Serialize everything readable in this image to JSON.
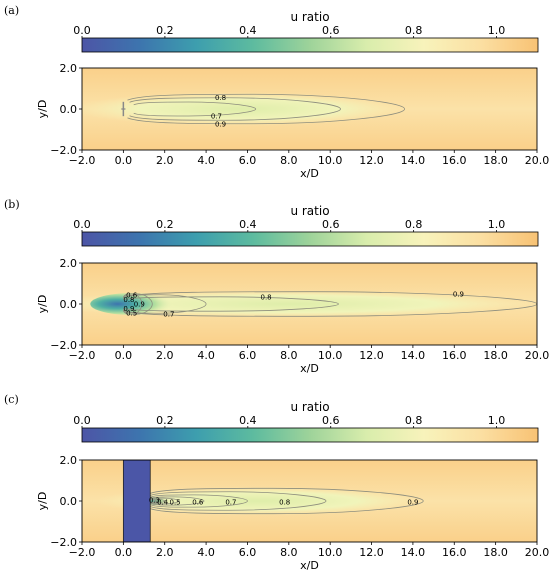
{
  "colors": {
    "colormap": [
      "#4d55a6",
      "#3d74ae",
      "#3d9eae",
      "#5dbb9f",
      "#9ed39a",
      "#d9edac",
      "#f8f3bb",
      "#fbdfa2",
      "#f8c274"
    ],
    "background": "#fad08a",
    "wake_core": "#e4f1b2",
    "contour_line": "#8e8e7e",
    "turbine_marker": "#888888",
    "blocked_region": "#4b56a7"
  },
  "chart_data": [
    {
      "panel": "(a)",
      "type": "heatmap",
      "colorbar": {
        "label": "u ratio",
        "ticks": [
          "0.0",
          "0.2",
          "0.4",
          "0.6",
          "0.8",
          "1.0"
        ],
        "range": [
          0.0,
          1.1
        ]
      },
      "xlabel": "x/D",
      "ylabel": "y/D",
      "xlim": [
        -2.0,
        20.0
      ],
      "ylim": [
        -2.0,
        2.0
      ],
      "xticks": [
        "−2.0",
        "0.0",
        "2.0",
        "4.0",
        "6.0",
        "8.0",
        "10.0",
        "12.0",
        "14.0",
        "16.0",
        "18.0",
        "20.0"
      ],
      "yticks": [
        "2.0",
        "0.0",
        "−2.0"
      ],
      "turbine_marker": true,
      "blocked_region": null,
      "contours": [
        {
          "level": 0.7,
          "x_start": 0.5,
          "x_end": 6.4,
          "half_width": 0.34,
          "label": "0.7",
          "label_x": 4.5,
          "label_y": -0.35
        },
        {
          "level": 0.8,
          "x_start": 0.3,
          "x_end": 10.5,
          "half_width": 0.55,
          "label": "0.8",
          "label_x": 4.7,
          "label_y": 0.55
        },
        {
          "level": 0.9,
          "x_start": 0.2,
          "x_end": 13.6,
          "half_width": 0.72,
          "label": "0.9",
          "label_x": 4.7,
          "label_y": -0.72
        }
      ]
    },
    {
      "panel": "(b)",
      "type": "heatmap",
      "colorbar": {
        "label": "u ratio",
        "ticks": [
          "0.0",
          "0.2",
          "0.4",
          "0.6",
          "0.8",
          "1.0"
        ],
        "range": [
          0.0,
          1.1
        ]
      },
      "xlabel": "x/D",
      "ylabel": "y/D",
      "xlim": [
        -2.0,
        20.0
      ],
      "ylim": [
        -2.0,
        2.0
      ],
      "xticks": [
        "−2.0",
        "0.0",
        "2.0",
        "4.0",
        "6.0",
        "8.0",
        "10.0",
        "12.0",
        "14.0",
        "16.0",
        "18.0",
        "20.0"
      ],
      "yticks": [
        "2.0",
        "0.0",
        "−2.0"
      ],
      "turbine_marker": false,
      "blocked_region": null,
      "contours": [
        {
          "level": 0.5,
          "x_start": 0.0,
          "x_end": 0.9,
          "half_width": 0.5,
          "label": "0.5",
          "label_x": 0.4,
          "label_y": -0.45
        },
        {
          "level": 0.6,
          "x_start": 0.0,
          "x_end": 1.4,
          "half_width": 0.5,
          "label": "0.6",
          "label_x": 0.4,
          "label_y": 0.45
        },
        {
          "level": 0.7,
          "x_start": 0.0,
          "x_end": 4.0,
          "half_width": 0.45,
          "label": "0.7",
          "label_x": 2.2,
          "label_y": -0.48
        },
        {
          "level": 0.8,
          "x_start": 0.0,
          "x_end": 10.4,
          "half_width": 0.35,
          "label": "0.8",
          "label_x": 6.9,
          "label_y": 0.35
        },
        {
          "level": 0.9,
          "x_start": 0.0,
          "x_end": 20.0,
          "half_width": 0.6,
          "label": "0.9",
          "label_x": 16.2,
          "label_y": 0.5
        }
      ],
      "extra_labels": [
        {
          "text": "0.8",
          "x": 0.0,
          "y": 0.22
        },
        {
          "text": "0.9",
          "x": 0.0,
          "y": -0.22
        },
        {
          "text": "0.9",
          "x": 0.5,
          "y": 0.0
        }
      ]
    },
    {
      "panel": "(c)",
      "type": "heatmap",
      "colorbar": {
        "label": "u ratio",
        "ticks": [
          "0.0",
          "0.2",
          "0.4",
          "0.6",
          "0.8",
          "1.0"
        ],
        "range": [
          0.0,
          1.1
        ]
      },
      "xlabel": "x/D",
      "ylabel": "y/D",
      "xlim": [
        -2.0,
        20.0
      ],
      "ylim": [
        -2.0,
        2.0
      ],
      "xticks": [
        "−2.0",
        "0.0",
        "2.0",
        "4.0",
        "6.0",
        "8.0",
        "10.0",
        "12.0",
        "14.0",
        "16.0",
        "18.0",
        "20.0"
      ],
      "yticks": [
        "2.0",
        "0.0",
        "−2.0"
      ],
      "turbine_marker": false,
      "blocked_region": {
        "x": [
          0.0,
          1.3
        ],
        "y": [
          -2.0,
          2.0
        ]
      },
      "contours": [
        {
          "level": 0.3,
          "x_start": 1.3,
          "x_end": 1.6,
          "half_width": 0.05,
          "label": "0.3",
          "label_x": 1.5,
          "label_y": 0.05
        },
        {
          "level": 0.4,
          "x_start": 1.3,
          "x_end": 2.0,
          "half_width": 0.08,
          "label": "0.4",
          "label_x": 1.9,
          "label_y": -0.05
        },
        {
          "level": 0.5,
          "x_start": 1.3,
          "x_end": 2.7,
          "half_width": 0.14,
          "label": "0.5",
          "label_x": 2.5,
          "label_y": -0.05
        },
        {
          "level": 0.6,
          "x_start": 1.3,
          "x_end": 3.9,
          "half_width": 0.2,
          "label": "0.6",
          "label_x": 3.6,
          "label_y": -0.05
        },
        {
          "level": 0.7,
          "x_start": 1.3,
          "x_end": 6.0,
          "half_width": 0.3,
          "label": "0.7",
          "label_x": 5.2,
          "label_y": -0.05
        },
        {
          "level": 0.8,
          "x_start": 1.3,
          "x_end": 9.8,
          "half_width": 0.45,
          "label": "0.8",
          "label_x": 7.8,
          "label_y": -0.05
        },
        {
          "level": 0.9,
          "x_start": 1.3,
          "x_end": 14.5,
          "half_width": 0.62,
          "label": "0.9",
          "label_x": 14.0,
          "label_y": -0.05
        }
      ]
    }
  ]
}
